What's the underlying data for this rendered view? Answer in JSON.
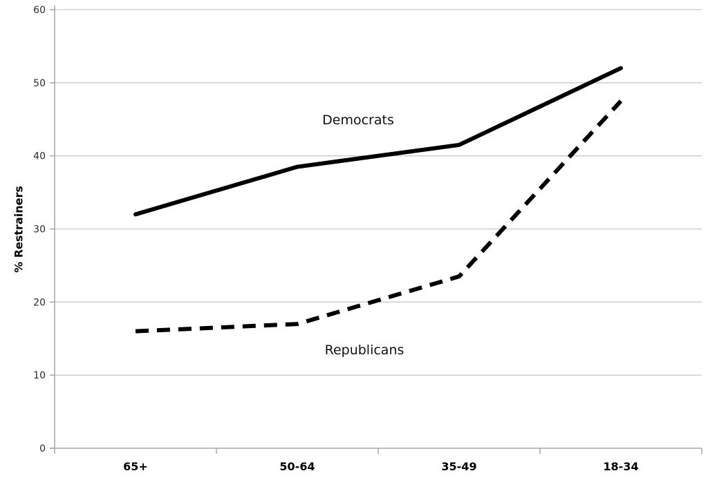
{
  "chart_data": {
    "type": "line",
    "categories": [
      "65+",
      "50-64",
      "35-49",
      "18-34"
    ],
    "series": [
      {
        "name": "Democrats",
        "values": [
          32,
          38.5,
          41.5,
          52
        ],
        "line_style": "solid"
      },
      {
        "name": "Republicans",
        "values": [
          16,
          17,
          23.5,
          47.5
        ],
        "line_style": "dashed"
      }
    ],
    "title": "",
    "xlabel": "",
    "ylabel": "% Restrainers",
    "ylim": [
      0,
      60
    ],
    "yticks": [
      0,
      10,
      20,
      30,
      40,
      50,
      60
    ],
    "grid": true,
    "legend_position": "inline-annotations",
    "colors": {
      "line": "#000000",
      "grid": "#c9c9c9",
      "axis": "#a6a6a6",
      "tick_text": "#2b2b2b",
      "background": "#ffffff"
    }
  }
}
